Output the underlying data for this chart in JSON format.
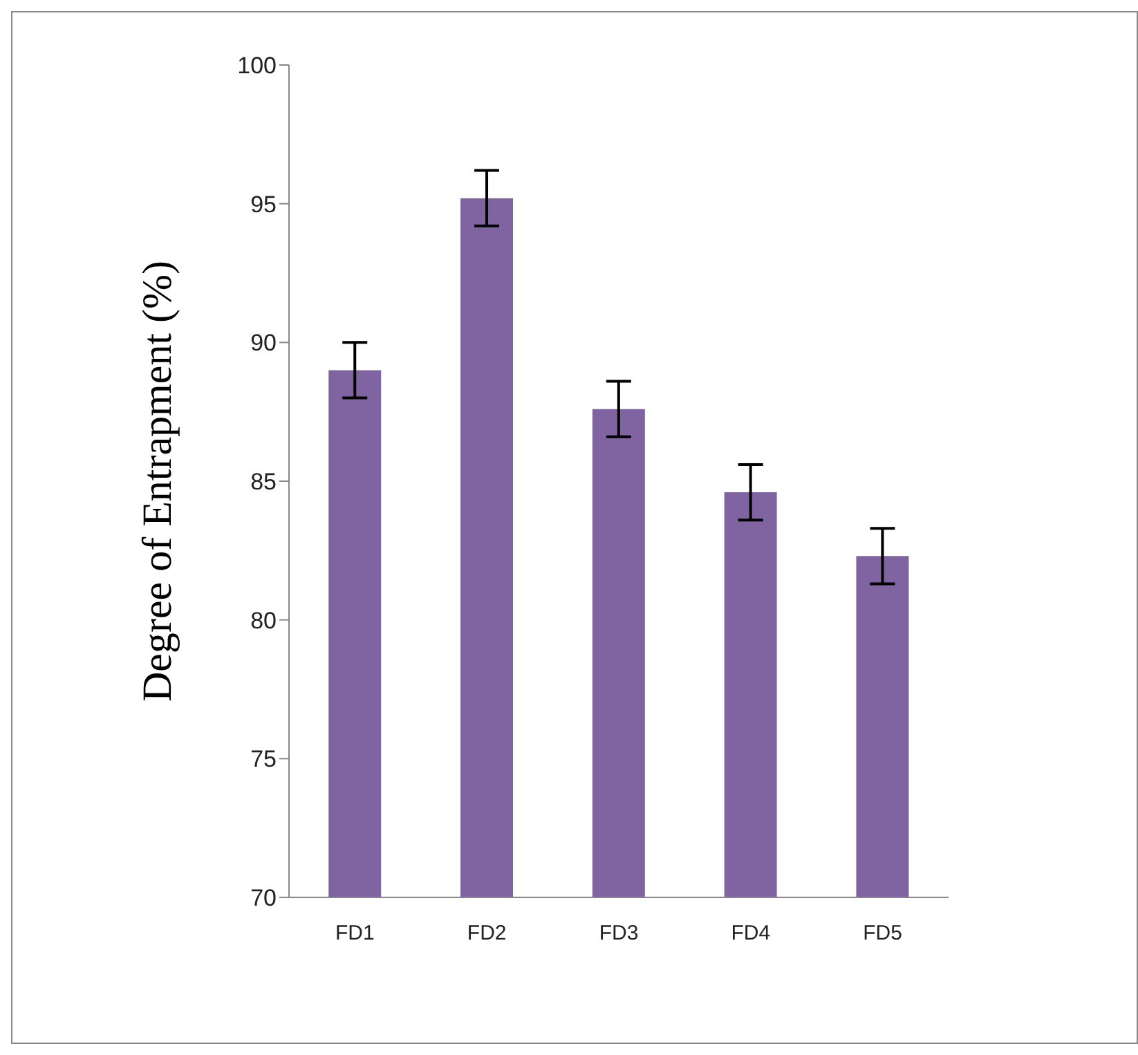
{
  "chart_data": {
    "type": "bar",
    "ylabel": "Degree of Entrapment  (%)",
    "categories": [
      "FD1",
      "FD2",
      "FD3",
      "FD4",
      "FD5"
    ],
    "values": [
      89.0,
      95.2,
      87.6,
      84.6,
      82.3
    ],
    "errors": [
      1,
      1,
      1,
      1,
      1
    ],
    "color": "#8064a2",
    "ylim": [
      70,
      100
    ],
    "yticks": [
      70,
      75,
      80,
      85,
      90,
      95,
      100
    ],
    "grid": false,
    "legend": false
  }
}
